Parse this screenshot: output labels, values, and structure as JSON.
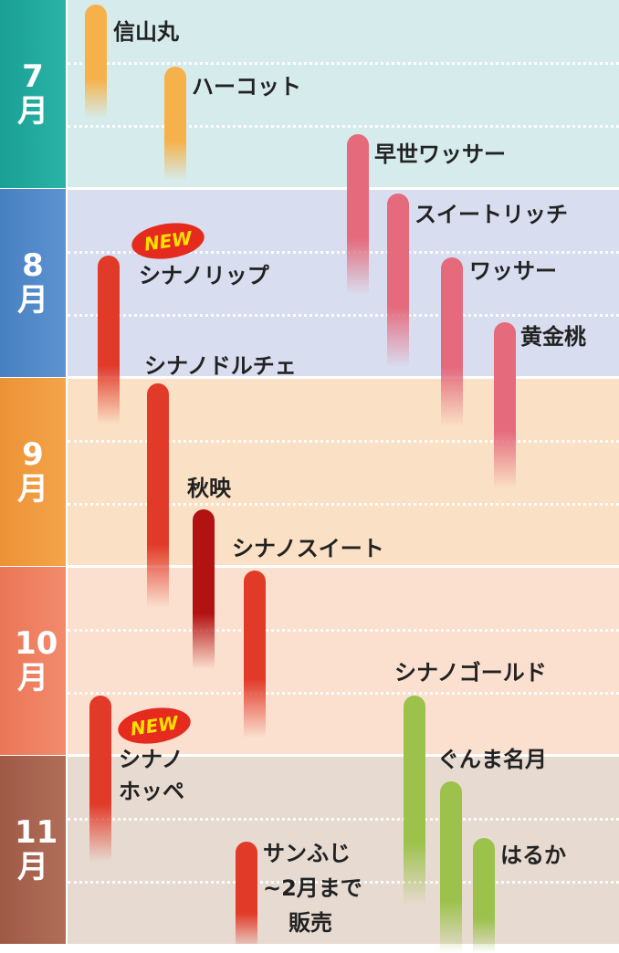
{
  "colors": {
    "peach": "#f6b14a",
    "pink": "#e46a7c",
    "red": "#e23a28",
    "darkred": "#b31212",
    "green": "#9cc24c",
    "new_badge": "#e52a1e",
    "new_text": "#ffe100"
  },
  "chart_data": {
    "type": "timeline",
    "axis": "month",
    "months": [
      {
        "label": "7月",
        "bg": "#d6ecec",
        "tab": "#1ea59a"
      },
      {
        "label": "8月",
        "bg": "#d8ddef",
        "tab": "#4f86c6"
      },
      {
        "label": "9月",
        "bg": "#fae0c4",
        "tab": "#f09a3e"
      },
      {
        "label": "10月",
        "bg": "#fbdfcf",
        "tab": "#ee7d5e"
      },
      {
        "label": "11月",
        "bg": "#e7dad0",
        "tab": "#a86550"
      }
    ],
    "varieties": [
      {
        "name": "信山丸",
        "start_month": 7.0,
        "end_month": 7.6,
        "color": "peach"
      },
      {
        "name": "ハーコット",
        "start_month": 7.35,
        "end_month": 7.95,
        "color": "peach"
      },
      {
        "name": "早世ワッサー",
        "start_month": 7.7,
        "end_month": 8.55,
        "color": "pink"
      },
      {
        "name": "スイートリッチ",
        "start_month": 8.0,
        "end_month": 8.95,
        "color": "pink"
      },
      {
        "name": "ワッサー",
        "start_month": 8.35,
        "end_month": 9.25,
        "color": "pink"
      },
      {
        "name": "黄金桃",
        "start_month": 8.7,
        "end_month": 9.6,
        "color": "pink"
      },
      {
        "name": "シナノリップ",
        "start_month": 8.35,
        "end_month": 9.25,
        "color": "red",
        "new": true
      },
      {
        "name": "シナノドルチェ",
        "start_month": 9.05,
        "end_month": 10.25,
        "color": "red"
      },
      {
        "name": "秋映",
        "start_month": 9.7,
        "end_month": 10.55,
        "color": "darkred"
      },
      {
        "name": "シナノスイート",
        "start_month": 10.05,
        "end_month": 10.9,
        "color": "red"
      },
      {
        "name": "シナノゴールド",
        "start_month": 10.7,
        "end_month": 11.75,
        "color": "green"
      },
      {
        "name": "ぐんま名月",
        "start_month": 11.15,
        "end_month": 12.0,
        "color": "green"
      },
      {
        "name": "はるか",
        "start_month": 11.45,
        "end_month": 12.0,
        "color": "green"
      },
      {
        "name": "シナノホッペ",
        "start_month": 10.7,
        "end_month": 11.55,
        "color": "red",
        "new": true
      },
      {
        "name": "サンふじ",
        "start_month": 11.47,
        "end_month": 12.0,
        "color": "red",
        "note": "~2月まで販売"
      }
    ]
  },
  "labels": {
    "shinzanmaru": "信山丸",
    "hacot": "ハーコット",
    "sosei_wasser": "早世ワッサー",
    "sweet_rich": "スイートリッチ",
    "wasser": "ワッサー",
    "ogonto": "黄金桃",
    "shinano_lip": "シナノリップ",
    "shinano_dolce": "シナノドルチェ",
    "akibae": "秋映",
    "shinano_sweet": "シナノスイート",
    "shinano_gold": "シナノゴールド",
    "gunma_meigetsu": "ぐんま名月",
    "haruka": "はるか",
    "shinano_hoppe_1": "シナノ",
    "shinano_hoppe_2": "ホッペ",
    "sunfuji_1": "サンふじ",
    "sunfuji_2": "~2月まで",
    "sunfuji_3": "販売",
    "new": "NEW"
  }
}
